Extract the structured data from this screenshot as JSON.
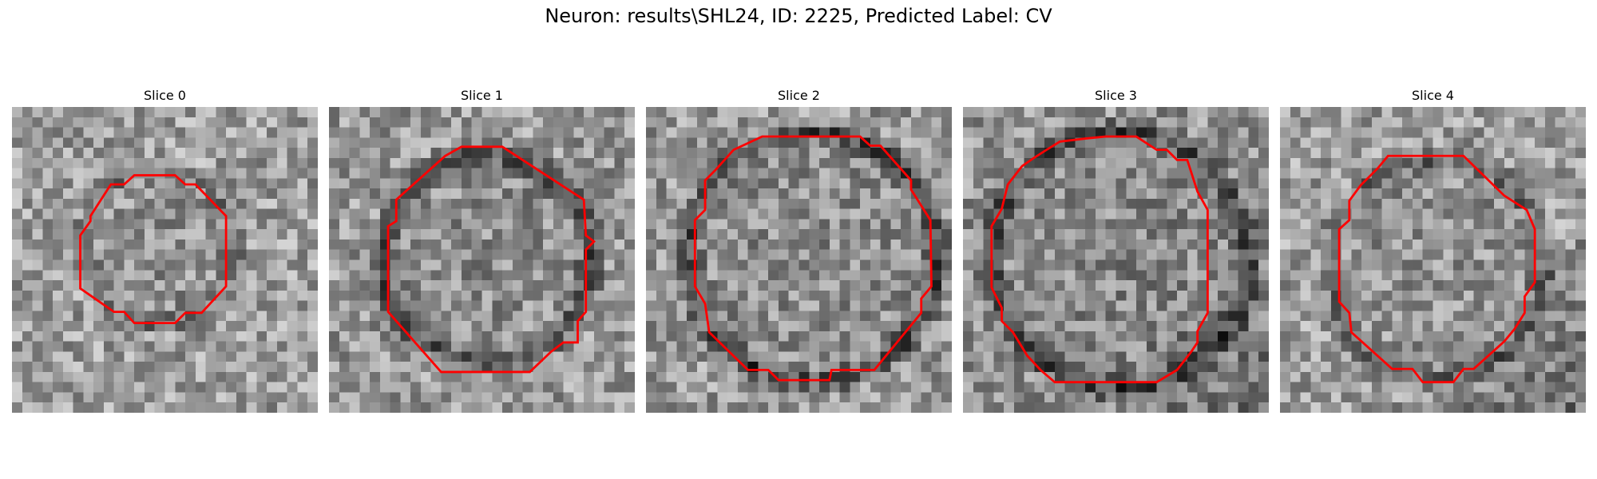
{
  "figure": {
    "title": "Neuron: results\\SHL24, ID: 2225, Predicted Label: CV"
  },
  "colors": {
    "contour": "#ff0000",
    "background": "#ffffff"
  },
  "slices": [
    {
      "title": "Slice 0"
    },
    {
      "title": "Slice 1"
    },
    {
      "title": "Slice 2"
    },
    {
      "title": "Slice 3"
    },
    {
      "title": "Slice 4"
    }
  ]
}
